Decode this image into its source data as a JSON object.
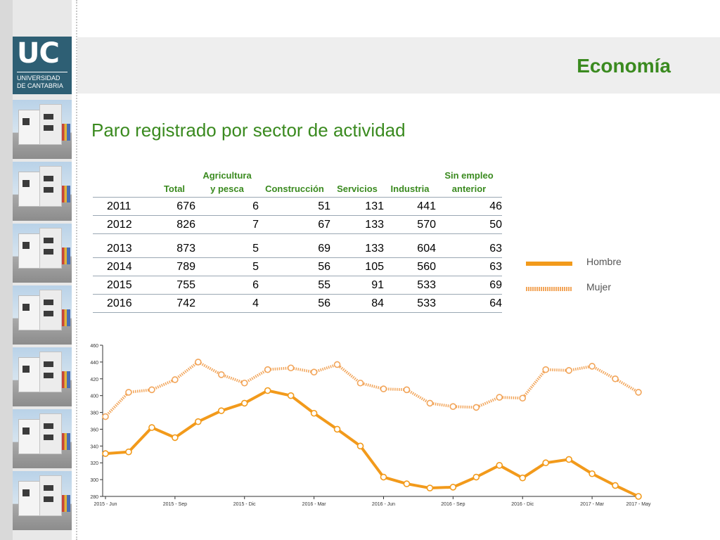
{
  "header": {
    "title": "Economía"
  },
  "logo": {
    "mark": "UC",
    "line1": "UNIVERSIDAD",
    "line2": "DE CANTABRIA"
  },
  "subtitle": "Paro registrado por sector de actividad",
  "table": {
    "headers": [
      "",
      "Total",
      "Agricultura\ny pesca",
      "Construcción",
      "Servicios",
      "Industria",
      "Sin empleo\nanterior"
    ],
    "rows": [
      [
        "2011",
        "676",
        "6",
        "51",
        "131",
        "441",
        "46"
      ],
      [
        "2012",
        "826",
        "7",
        "67",
        "133",
        "570",
        "50"
      ],
      [
        "2013",
        "873",
        "5",
        "69",
        "133",
        "604",
        "63"
      ],
      [
        "2014",
        "789",
        "5",
        "56",
        "105",
        "560",
        "63"
      ],
      [
        "2015",
        "755",
        "6",
        "55",
        "91",
        "533",
        "69"
      ],
      [
        "2016",
        "742",
        "4",
        "56",
        "84",
        "533",
        "64"
      ]
    ]
  },
  "legend": {
    "items": [
      "Hombre",
      "Mujer"
    ]
  },
  "chart_data": {
    "type": "line",
    "title": "",
    "xlabel": "",
    "ylabel": "",
    "x_tick_labels": [
      "2015 - Jun",
      "2015 - Sep",
      "2015 - Dic",
      "2016 - Mar",
      "2016 - Jun",
      "2016 - Sep",
      "2016 - Dic",
      "2017 - Mar",
      "2017 - May"
    ],
    "x_tick_index": [
      0,
      3,
      6,
      9,
      12,
      15,
      18,
      21,
      23
    ],
    "ylim": [
      280,
      460
    ],
    "yticks": [
      280,
      300,
      320,
      340,
      360,
      380,
      400,
      420,
      440,
      460
    ],
    "grid": false,
    "legend_position": "top-right",
    "series": [
      {
        "name": "Hombre",
        "color": "#f29a1b",
        "style": "solid",
        "values": [
          331,
          333,
          362,
          350,
          369,
          382,
          391,
          406,
          400,
          379,
          360,
          340,
          303,
          295,
          290,
          291,
          303,
          317,
          302,
          320,
          324,
          307,
          293,
          280
        ]
      },
      {
        "name": "Mujer",
        "color": "#f2a55a",
        "style": "dotted",
        "values": [
          375,
          404,
          407,
          419,
          440,
          425,
          415,
          431,
          433,
          428,
          437,
          415,
          408,
          407,
          391,
          387,
          386,
          398,
          397,
          431,
          430,
          435,
          420,
          404
        ]
      }
    ]
  }
}
